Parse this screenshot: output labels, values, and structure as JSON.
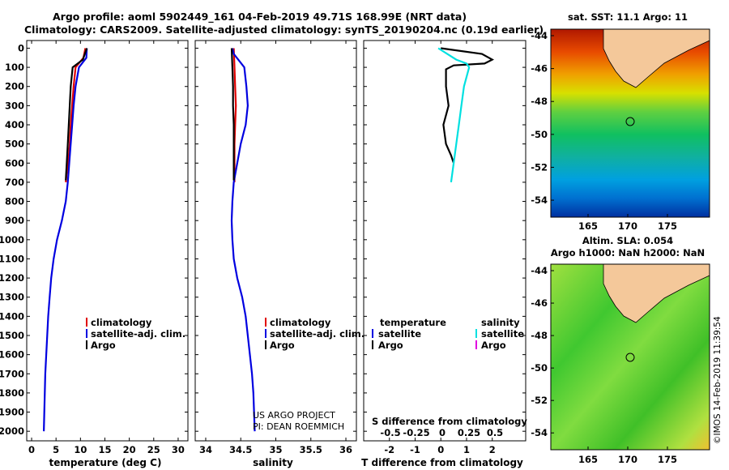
{
  "header": {
    "title_line1": "Argo profile: aoml 5902449_161 04-Feb-2019 49.71S 168.99E (NRT data)",
    "title_line2": "Climatology: CARS2009. Satellite-adjusted climatology: synTS_20190204.nc (0.19d earlier)"
  },
  "colors": {
    "clim": "#e00000",
    "sat": "#0000e0",
    "argo": "#000000",
    "sat_s": "#00e0e0",
    "argo_s": "#e000e0"
  },
  "depth_axis": {
    "ticks": [
      0,
      100,
      200,
      300,
      400,
      500,
      600,
      700,
      800,
      900,
      1000,
      1100,
      1200,
      1300,
      1400,
      1500,
      1600,
      1700,
      1800,
      1900,
      2000
    ]
  },
  "chart_data": [
    {
      "type": "line",
      "id": "temperature",
      "xlabel": "temperature (deg C)",
      "ylabel": "depth",
      "xlim": [
        -1,
        32
      ],
      "ylim": [
        2050,
        -40
      ],
      "xticks": [
        0,
        5,
        10,
        15,
        20,
        25,
        30
      ],
      "series": [
        {
          "name": "climatology",
          "color": "#e00000",
          "x": [
            11.0,
            10.6,
            9.0,
            8.6,
            8.3,
            8.0,
            7.8,
            7.5,
            7.2,
            7.0
          ],
          "y": [
            0,
            50,
            100,
            200,
            300,
            400,
            500,
            600,
            650,
            700
          ]
        },
        {
          "name": "satellite-adj. clim.",
          "color": "#0000e0",
          "x": [
            11.3,
            11.2,
            9.7,
            9.0,
            8.6,
            8.3,
            8.0,
            7.7,
            7.4,
            7.0,
            6.2,
            5.2,
            4.5,
            4.0,
            3.7,
            3.4,
            3.2,
            3.0,
            2.8,
            2.7,
            2.6,
            2.5
          ],
          "y": [
            0,
            50,
            100,
            200,
            300,
            400,
            500,
            600,
            700,
            800,
            900,
            1000,
            1100,
            1200,
            1300,
            1400,
            1500,
            1600,
            1700,
            1800,
            1900,
            2000
          ]
        },
        {
          "name": "Argo",
          "color": "#000000",
          "x": [
            11.3,
            10.5,
            8.4,
            8.0,
            7.8,
            7.6,
            7.4,
            7.2,
            7.0
          ],
          "y": [
            0,
            60,
            100,
            200,
            300,
            400,
            500,
            600,
            690
          ]
        }
      ],
      "legend": {
        "position": "lower-right",
        "entries": [
          "climatology",
          "satellite-adj. clim.",
          "Argo"
        ]
      }
    },
    {
      "type": "line",
      "id": "salinity",
      "xlabel": "salinity",
      "ylabel": "depth",
      "xlim": [
        33.85,
        36.15
      ],
      "ylim": [
        2050,
        -40
      ],
      "xticks": [
        34,
        34.5,
        35,
        35.5,
        36
      ],
      "series": [
        {
          "name": "climatology",
          "color": "#e00000",
          "x": [
            34.4,
            34.41,
            34.42,
            34.43,
            34.42,
            34.41,
            34.41
          ],
          "y": [
            0,
            100,
            200,
            300,
            400,
            500,
            700
          ]
        },
        {
          "name": "satellite-adj. clim.",
          "color": "#0000e0",
          "x": [
            34.38,
            34.4,
            34.55,
            34.58,
            34.6,
            34.57,
            34.5,
            34.45,
            34.4,
            34.38,
            34.37,
            34.38,
            34.4,
            34.45,
            34.52,
            34.57,
            34.6,
            34.63,
            34.66,
            34.68,
            34.7
          ],
          "y": [
            0,
            30,
            100,
            200,
            300,
            400,
            500,
            600,
            700,
            800,
            900,
            1000,
            1100,
            1200,
            1300,
            1400,
            1500,
            1600,
            1700,
            1800,
            2000
          ]
        },
        {
          "name": "Argo",
          "color": "#000000",
          "x": [
            34.37,
            34.38,
            34.39,
            34.39,
            34.4,
            34.4,
            34.4
          ],
          "y": [
            0,
            100,
            200,
            300,
            400,
            500,
            690
          ]
        }
      ],
      "legend": {
        "position": "lower-right",
        "entries": [
          "climatology",
          "satellite-adj. clim.",
          "Argo"
        ]
      },
      "annotation": {
        "line1": "US ARGO PROJECT",
        "line2": "PI: DEAN ROEMMICH"
      }
    },
    {
      "type": "line",
      "id": "difference",
      "xlabel": "T difference from climatology",
      "x2label": "S difference from climatology",
      "xlim": [
        -3,
        3.3
      ],
      "ylim": [
        2050,
        -40
      ],
      "xticks": [
        -2,
        -1,
        0,
        1,
        2
      ],
      "s_ticks": [
        "-0.5",
        "-0.25",
        "0",
        "0.25",
        "0.5"
      ],
      "series": [
        {
          "name": "temperature satellite",
          "color": "#0000e0",
          "x": [
            0.0,
            0.0
          ],
          "y": [
            0,
            0
          ]
        },
        {
          "name": "temperature Argo",
          "color": "#000000",
          "x": [
            0.0,
            1.6,
            2.0,
            1.7,
            0.5,
            0.2,
            0.2,
            0.3,
            0.1,
            0.2,
            0.4,
            0.5
          ],
          "y": [
            0,
            30,
            60,
            80,
            90,
            110,
            200,
            300,
            400,
            500,
            560,
            600
          ]
        },
        {
          "name": "salinity satellite",
          "color": "#00e0e0",
          "x": [
            -0.1,
            0.6,
            1.0,
            1.1,
            0.9,
            0.8,
            0.7,
            0.6,
            0.5,
            0.4
          ],
          "y": [
            0,
            60,
            80,
            100,
            200,
            300,
            400,
            500,
            600,
            700
          ]
        },
        {
          "name": "salinity Argo",
          "color": "#e000e0",
          "x": [
            0.0,
            0.0
          ],
          "y": [
            0,
            0
          ]
        }
      ],
      "legend": {
        "temperature": "temperature",
        "salinity": "salinity",
        "satellite": "satellite",
        "argo": "Argo"
      }
    }
  ],
  "maps": {
    "sst": {
      "title": "sat. SST: 11.1 Argo: 11",
      "lat_ticks": [
        "-44",
        "-46",
        "-48",
        "-50",
        "-52",
        "-54"
      ],
      "lon_ticks": [
        "165",
        "170",
        "175"
      ]
    },
    "sla": {
      "title_line1": "Altim. SLA: 0.054",
      "title_line2": "Argo h1000: NaN h2000: NaN",
      "lat_ticks": [
        "-44",
        "-46",
        "-48",
        "-50",
        "-52",
        "-54"
      ],
      "lon_ticks": [
        "165",
        "170",
        "175"
      ]
    },
    "credit": "©IMOS 14-Feb-2019 11:39:54"
  }
}
